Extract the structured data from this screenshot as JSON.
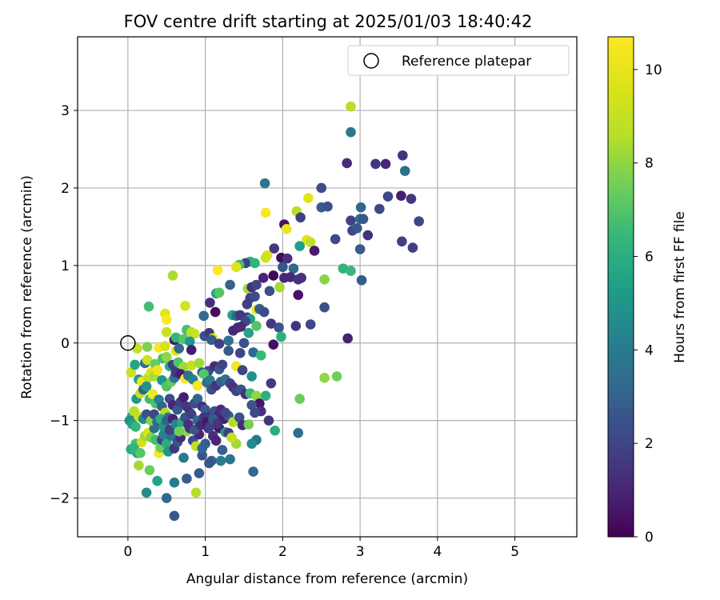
{
  "chart_data": {
    "type": "scatter",
    "title": "FOV centre drift starting at 2025/01/03 18:40:42",
    "xlabel": "Angular distance from reference (arcmin)",
    "ylabel": "Rotation from reference (arcmin)",
    "xlim": [
      -0.65,
      5.8
    ],
    "ylim": [
      -2.5,
      3.95
    ],
    "xticks": [
      0,
      1,
      2,
      3,
      4,
      5
    ],
    "yticks": [
      -2,
      -1,
      0,
      1,
      2,
      3
    ],
    "grid": true,
    "legend": {
      "placement": "top-right",
      "entries": [
        "Reference platepar"
      ]
    },
    "reference_point": {
      "x": 0,
      "y": 0
    },
    "colorbar": {
      "label": "Hours from first FF file",
      "range": [
        0,
        10.7
      ],
      "ticks": [
        0,
        2,
        4,
        6,
        8,
        10
      ],
      "colormap": "viridis"
    },
    "points": [
      [
        2.88,
        3.05,
        8.6
      ],
      [
        2.88,
        2.72,
        3.8
      ],
      [
        2.83,
        2.32,
        1.2
      ],
      [
        3.2,
        2.31,
        1.5
      ],
      [
        3.33,
        2.31,
        1.0
      ],
      [
        3.55,
        2.42,
        1.5
      ],
      [
        3.58,
        2.22,
        3.5
      ],
      [
        1.77,
        2.06,
        3.8
      ],
      [
        2.5,
        2.0,
        2.2
      ],
      [
        2.33,
        1.87,
        9.8
      ],
      [
        3.36,
        1.89,
        2.0
      ],
      [
        3.53,
        1.9,
        0.8
      ],
      [
        3.66,
        1.86,
        1.6
      ],
      [
        2.18,
        1.7,
        8.6
      ],
      [
        2.5,
        1.75,
        2.8
      ],
      [
        2.58,
        1.76,
        2.4
      ],
      [
        3.01,
        1.75,
        3.2
      ],
      [
        3.25,
        1.73,
        2.1
      ],
      [
        1.78,
        1.68,
        10.6
      ],
      [
        2.23,
        1.62,
        1.8
      ],
      [
        2.88,
        1.58,
        1.9
      ],
      [
        3.0,
        1.6,
        3.5
      ],
      [
        3.04,
        1.6,
        2.6
      ],
      [
        3.76,
        1.57,
        2.0
      ],
      [
        2.02,
        1.53,
        0.5
      ],
      [
        2.05,
        1.47,
        10.2
      ],
      [
        2.9,
        1.45,
        2.0
      ],
      [
        2.96,
        1.48,
        2.6
      ],
      [
        3.1,
        1.39,
        1.3
      ],
      [
        2.68,
        1.34,
        2.2
      ],
      [
        3.54,
        1.31,
        1.8
      ],
      [
        2.31,
        1.33,
        9.8
      ],
      [
        2.36,
        1.3,
        8.8
      ],
      [
        2.22,
        1.25,
        5.4
      ],
      [
        1.89,
        1.22,
        1.6
      ],
      [
        2.41,
        1.19,
        0.7
      ],
      [
        3.0,
        1.21,
        2.8
      ],
      [
        3.68,
        1.23,
        1.8
      ],
      [
        1.8,
        1.13,
        9.5
      ],
      [
        1.78,
        1.1,
        9.2
      ],
      [
        1.98,
        1.1,
        0.3
      ],
      [
        2.06,
        1.09,
        1.3
      ],
      [
        1.58,
        1.05,
        6.2
      ],
      [
        1.52,
        1.03,
        1.9
      ],
      [
        1.44,
        1.01,
        6.7
      ],
      [
        1.64,
        1.03,
        6.3
      ],
      [
        1.4,
        0.98,
        9.6
      ],
      [
        1.16,
        0.94,
        10.7
      ],
      [
        2.0,
        0.98,
        2.6
      ],
      [
        2.14,
        0.96,
        3.2
      ],
      [
        2.78,
        0.96,
        6.2
      ],
      [
        2.88,
        0.93,
        6.5
      ],
      [
        2.54,
        0.82,
        7.9
      ],
      [
        3.02,
        0.81,
        2.8
      ],
      [
        0.58,
        0.87,
        8.4
      ],
      [
        1.75,
        0.84,
        1.0
      ],
      [
        1.88,
        0.87,
        0.1
      ],
      [
        2.02,
        0.84,
        1.1
      ],
      [
        2.1,
        0.85,
        1.1
      ],
      [
        2.2,
        0.82,
        1.5
      ],
      [
        2.24,
        0.84,
        1.4
      ],
      [
        1.32,
        0.75,
        3.0
      ],
      [
        1.55,
        0.7,
        8.3
      ],
      [
        1.6,
        0.72,
        1.4
      ],
      [
        1.66,
        0.75,
        2.0
      ],
      [
        1.96,
        0.72,
        8.3
      ],
      [
        1.83,
        0.67,
        2.4
      ],
      [
        2.2,
        0.62,
        0.5
      ],
      [
        1.14,
        0.64,
        5.6
      ],
      [
        1.18,
        0.65,
        7.1
      ],
      [
        0.27,
        0.47,
        6.7
      ],
      [
        0.74,
        0.48,
        9.4
      ],
      [
        1.06,
        0.52,
        1.3
      ],
      [
        1.58,
        0.58,
        1.8
      ],
      [
        1.64,
        0.6,
        2.3
      ],
      [
        1.54,
        0.5,
        1.8
      ],
      [
        1.66,
        0.43,
        10.4
      ],
      [
        1.7,
        0.44,
        2.9
      ],
      [
        1.76,
        0.4,
        2.2
      ],
      [
        2.54,
        0.46,
        2.4
      ],
      [
        0.48,
        0.38,
        9.8
      ],
      [
        0.5,
        0.3,
        10.6
      ],
      [
        0.98,
        0.35,
        3.3
      ],
      [
        1.13,
        0.4,
        0.3
      ],
      [
        1.35,
        0.36,
        5.7
      ],
      [
        1.4,
        0.35,
        3.3
      ],
      [
        1.45,
        0.36,
        1.6
      ],
      [
        1.54,
        0.33,
        1.5
      ],
      [
        1.58,
        0.31,
        5.4
      ],
      [
        1.52,
        0.28,
        2.1
      ],
      [
        1.85,
        0.25,
        1.6
      ],
      [
        1.95,
        0.2,
        2.6
      ],
      [
        2.36,
        0.24,
        2.1
      ],
      [
        2.17,
        0.22,
        1.5
      ],
      [
        0.5,
        0.14,
        9.0
      ],
      [
        0.76,
        0.17,
        6.8
      ],
      [
        0.82,
        0.14,
        8.8
      ],
      [
        0.86,
        0.12,
        9.1
      ],
      [
        0.99,
        0.09,
        2.5
      ],
      [
        1.05,
        0.13,
        1.6
      ],
      [
        1.36,
        0.16,
        1.1
      ],
      [
        1.42,
        0.2,
        1.0
      ],
      [
        1.46,
        0.21,
        1.2
      ],
      [
        1.56,
        0.13,
        5.5
      ],
      [
        1.66,
        0.22,
        7.0
      ],
      [
        1.98,
        0.08,
        6.1
      ],
      [
        2.84,
        0.06,
        0.9
      ],
      [
        0.6,
        0.04,
        0.5
      ],
      [
        0.62,
        0.07,
        6.3
      ],
      [
        0.72,
        0.05,
        7.1
      ],
      [
        0.8,
        0.02,
        5.0
      ],
      [
        1.1,
        0.06,
        9.9
      ],
      [
        1.08,
        0.04,
        2.7
      ],
      [
        1.3,
        0.03,
        3.6
      ],
      [
        1.18,
        -0.01,
        1.8
      ],
      [
        1.5,
        0.0,
        2.4
      ],
      [
        1.88,
        -0.02,
        0.4
      ],
      [
        0.12,
        -0.07,
        9.0
      ],
      [
        0.25,
        -0.05,
        7.7
      ],
      [
        0.4,
        -0.06,
        10.5
      ],
      [
        0.48,
        -0.04,
        9.4
      ],
      [
        0.62,
        -0.1,
        9.8
      ],
      [
        0.66,
        -0.07,
        3.3
      ],
      [
        0.82,
        -0.09,
        0.8
      ],
      [
        1.3,
        -0.1,
        2.7
      ],
      [
        1.45,
        -0.13,
        2.0
      ],
      [
        1.62,
        -0.12,
        3.2
      ],
      [
        1.72,
        -0.16,
        6.5
      ],
      [
        0.04,
        -0.38,
        9.2
      ],
      [
        0.09,
        -0.28,
        5.6
      ],
      [
        0.22,
        -0.26,
        3.6
      ],
      [
        0.25,
        -0.22,
        9.2
      ],
      [
        0.35,
        -0.27,
        7.4
      ],
      [
        0.45,
        -0.2,
        6.8
      ],
      [
        0.5,
        -0.18,
        8.0
      ],
      [
        0.54,
        -0.3,
        5.8
      ],
      [
        0.58,
        -0.28,
        1.8
      ],
      [
        0.65,
        -0.25,
        6.9
      ],
      [
        0.72,
        -0.31,
        8.2
      ],
      [
        0.82,
        -0.29,
        9.0
      ],
      [
        0.92,
        -0.26,
        8.2
      ],
      [
        0.96,
        -0.38,
        2.7
      ],
      [
        1.04,
        -0.36,
        2.2
      ],
      [
        1.12,
        -0.3,
        1.2
      ],
      [
        1.18,
        -0.34,
        2.8
      ],
      [
        1.22,
        -0.28,
        2.0
      ],
      [
        1.4,
        -0.3,
        10.5
      ],
      [
        1.48,
        -0.35,
        2.0
      ],
      [
        1.6,
        -0.43,
        4.8
      ],
      [
        1.85,
        -0.52,
        1.7
      ],
      [
        0.14,
        -0.47,
        5.4
      ],
      [
        0.18,
        -0.5,
        10.4
      ],
      [
        0.26,
        -0.45,
        8.8
      ],
      [
        0.3,
        -0.38,
        9.5
      ],
      [
        0.34,
        -0.43,
        8.4
      ],
      [
        0.38,
        -0.35,
        10.2
      ],
      [
        0.44,
        -0.48,
        5.0
      ],
      [
        0.5,
        -0.56,
        6.9
      ],
      [
        0.56,
        -0.5,
        7.3
      ],
      [
        0.6,
        -0.45,
        3.7
      ],
      [
        0.62,
        -0.38,
        1.7
      ],
      [
        0.68,
        -0.4,
        0.8
      ],
      [
        0.74,
        -0.46,
        10.6
      ],
      [
        0.78,
        -0.42,
        3.6
      ],
      [
        0.84,
        -0.47,
        4.3
      ],
      [
        0.9,
        -0.55,
        10.5
      ],
      [
        0.98,
        -0.4,
        7.1
      ],
      [
        1.02,
        -0.51,
        3.6
      ],
      [
        1.06,
        -0.48,
        4.1
      ],
      [
        1.08,
        -0.6,
        2.2
      ],
      [
        1.14,
        -0.55,
        1.5
      ],
      [
        1.2,
        -0.5,
        2.9
      ],
      [
        1.26,
        -0.47,
        3.7
      ],
      [
        1.32,
        -0.52,
        1.8
      ],
      [
        1.36,
        -0.57,
        1.4
      ],
      [
        1.4,
        -0.62,
        2.0
      ],
      [
        1.46,
        -0.6,
        2.5
      ],
      [
        1.52,
        -0.66,
        1.2
      ],
      [
        1.58,
        -0.65,
        6.6
      ],
      [
        1.66,
        -0.68,
        8.0
      ],
      [
        1.7,
        -0.78,
        0.6
      ],
      [
        1.72,
        -0.88,
        1.4
      ],
      [
        1.78,
        -0.68,
        6.1
      ],
      [
        1.6,
        -0.8,
        2.6
      ],
      [
        1.64,
        -0.9,
        2.2
      ],
      [
        2.22,
        -0.72,
        7.4
      ],
      [
        2.54,
        -0.45,
        8.0
      ],
      [
        2.7,
        -0.43,
        7.5
      ],
      [
        0.05,
        -0.95,
        6.1
      ],
      [
        0.08,
        -0.88,
        8.6
      ],
      [
        0.11,
        -0.72,
        5.2
      ],
      [
        0.16,
        -0.65,
        9.1
      ],
      [
        0.2,
        -0.6,
        3.1
      ],
      [
        0.24,
        -0.56,
        5.0
      ],
      [
        0.28,
        -0.72,
        6.6
      ],
      [
        0.32,
        -0.66,
        10.3
      ],
      [
        0.36,
        -0.78,
        6.9
      ],
      [
        0.4,
        -0.73,
        4.3
      ],
      [
        0.44,
        -0.82,
        3.0
      ],
      [
        0.48,
        -0.9,
        8.6
      ],
      [
        0.52,
        -0.96,
        3.8
      ],
      [
        0.54,
        -0.72,
        2.2
      ],
      [
        0.58,
        -0.8,
        1.0
      ],
      [
        0.64,
        -0.86,
        2.8
      ],
      [
        0.68,
        -0.76,
        1.9
      ],
      [
        0.72,
        -0.7,
        0.8
      ],
      [
        0.76,
        -0.82,
        1.6
      ],
      [
        0.8,
        -0.9,
        1.2
      ],
      [
        0.86,
        -0.78,
        2.3
      ],
      [
        0.9,
        -0.72,
        3.1
      ],
      [
        0.96,
        -0.82,
        1.3
      ],
      [
        1.0,
        -0.86,
        2.8
      ],
      [
        1.06,
        -0.95,
        1.6
      ],
      [
        1.12,
        -0.88,
        2.4
      ],
      [
        1.18,
        -0.92,
        1.0
      ],
      [
        1.24,
        -0.98,
        0.8
      ],
      [
        1.3,
        -0.94,
        2.9
      ],
      [
        1.36,
        -1.02,
        8.5
      ],
      [
        1.44,
        -0.96,
        2.4
      ],
      [
        1.48,
        -1.06,
        1.2
      ],
      [
        1.56,
        -1.05,
        7.6
      ],
      [
        1.82,
        -1.0,
        1.5
      ],
      [
        1.9,
        -1.13,
        6.0
      ],
      [
        2.2,
        -1.16,
        3.5
      ],
      [
        1.66,
        -1.25,
        3.7
      ],
      [
        1.6,
        -1.3,
        4.6
      ],
      [
        1.62,
        -1.66,
        3.3
      ],
      [
        1.4,
        -1.3,
        8.3
      ],
      [
        1.32,
        -1.5,
        3.8
      ],
      [
        1.2,
        -1.52,
        4.0
      ],
      [
        1.08,
        -1.52,
        3.0
      ],
      [
        1.05,
        -1.55,
        2.6
      ],
      [
        0.96,
        -1.45,
        2.6
      ],
      [
        0.92,
        -1.68,
        2.8
      ],
      [
        0.88,
        -1.93,
        8.6
      ],
      [
        0.76,
        -1.75,
        2.8
      ],
      [
        0.6,
        -1.8,
        4.0
      ],
      [
        0.6,
        -2.23,
        2.6
      ],
      [
        0.5,
        -2.0,
        3.2
      ],
      [
        0.38,
        -1.78,
        5.5
      ],
      [
        0.24,
        -1.93,
        4.6
      ],
      [
        0.28,
        -1.64,
        7.4
      ],
      [
        0.14,
        -1.58,
        8.3
      ],
      [
        0.12,
        -1.42,
        5.5
      ],
      [
        0.04,
        -1.37,
        5.8
      ],
      [
        0.1,
        -1.3,
        6.8
      ],
      [
        0.18,
        -1.28,
        9.4
      ],
      [
        0.22,
        -1.2,
        8.3
      ],
      [
        0.26,
        -1.16,
        9.6
      ],
      [
        0.3,
        -1.22,
        7.7
      ],
      [
        0.34,
        -1.1,
        3.6
      ],
      [
        0.36,
        -1.25,
        6.6
      ],
      [
        0.4,
        -1.42,
        10.4
      ],
      [
        0.42,
        -1.35,
        7.4
      ],
      [
        0.44,
        -1.25,
        2.0
      ],
      [
        0.46,
        -1.18,
        4.3
      ],
      [
        0.5,
        -1.3,
        6.0
      ],
      [
        0.52,
        -1.4,
        5.0
      ],
      [
        0.56,
        -1.2,
        3.6
      ],
      [
        0.6,
        -1.36,
        1.5
      ],
      [
        0.64,
        -1.28,
        2.4
      ],
      [
        0.68,
        -1.22,
        1.1
      ],
      [
        0.72,
        -1.48,
        4.0
      ],
      [
        0.76,
        -1.14,
        8.0
      ],
      [
        0.8,
        -1.1,
        1.5
      ],
      [
        0.84,
        -1.26,
        2.2
      ],
      [
        0.88,
        -1.33,
        8.8
      ],
      [
        0.92,
        -1.18,
        1.0
      ],
      [
        0.96,
        -1.36,
        3.2
      ],
      [
        1.0,
        -1.3,
        2.9
      ],
      [
        1.04,
        -1.1,
        1.5
      ],
      [
        1.1,
        -1.2,
        1.3
      ],
      [
        1.14,
        -1.26,
        1.0
      ],
      [
        1.18,
        -1.1,
        0.6
      ],
      [
        1.22,
        -1.38,
        2.9
      ],
      [
        1.26,
        -1.15,
        5.0
      ],
      [
        1.3,
        -1.16,
        1.8
      ],
      [
        1.34,
        -1.22,
        9.0
      ],
      [
        0.02,
        -1.0,
        4.8
      ],
      [
        0.06,
        -1.05,
        5.4
      ],
      [
        0.1,
        -1.08,
        6.4
      ],
      [
        0.14,
        -0.95,
        9.0
      ],
      [
        0.2,
        -0.98,
        4.6
      ],
      [
        0.24,
        -0.92,
        2.4
      ],
      [
        0.3,
        -1.0,
        7.8
      ],
      [
        0.34,
        -0.92,
        2.0
      ],
      [
        0.38,
        -1.02,
        3.3
      ],
      [
        0.42,
        -0.98,
        6.0
      ],
      [
        0.46,
        -1.08,
        5.0
      ],
      [
        0.5,
        -1.0,
        3.0
      ],
      [
        0.54,
        -1.12,
        1.9
      ],
      [
        0.58,
        -0.98,
        0.9
      ],
      [
        0.62,
        -1.05,
        4.4
      ],
      [
        0.66,
        -1.14,
        7.5
      ],
      [
        0.7,
        -1.02,
        5.8
      ],
      [
        0.74,
        -0.96,
        2.4
      ],
      [
        0.78,
        -1.05,
        1.3
      ],
      [
        0.82,
        -0.92,
        1.8
      ],
      [
        0.86,
        -1.12,
        2.6
      ],
      [
        0.9,
        -1.0,
        3.4
      ],
      [
        0.94,
        -1.06,
        1.1
      ],
      [
        0.98,
        -0.96,
        1.6
      ],
      [
        1.02,
        -1.02,
        0.6
      ],
      [
        1.06,
        -1.08,
        1.9
      ],
      [
        1.1,
        -0.98,
        2.7
      ],
      [
        1.16,
        -1.04,
        1.5
      ],
      [
        1.2,
        -0.86,
        1.2
      ],
      [
        1.26,
        -0.9,
        2.1
      ],
      [
        0.08,
        -1.36,
        6.3
      ],
      [
        0.16,
        -1.42,
        7.1
      ]
    ]
  }
}
